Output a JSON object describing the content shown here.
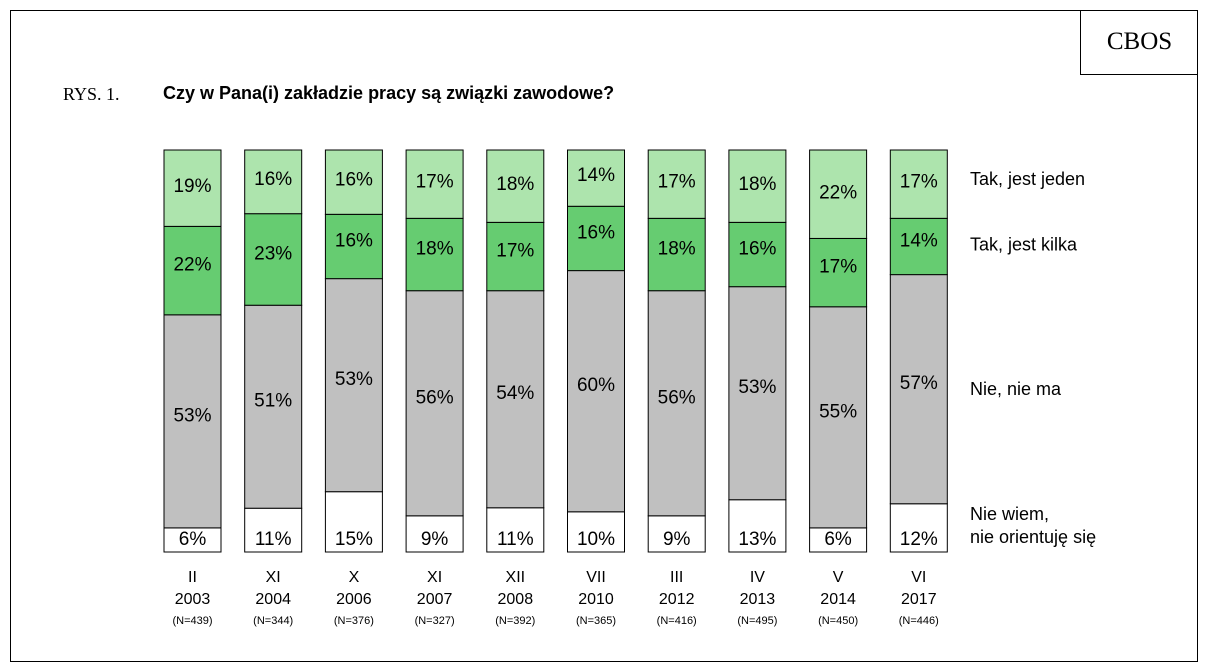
{
  "brand": "CBOS",
  "figure_label": "RYS. 1.",
  "colors": {
    "tak_jeden": "#ade4ad",
    "tak_kilka": "#66cc71",
    "nie_ma": "#c0c0c0",
    "nie_wiem": "#ffffff"
  },
  "chart_data": {
    "type": "bar",
    "stacked": true,
    "percent": true,
    "title": "Czy w Pana(i) zakładzie pracy są związki zawodowe?",
    "categories": [
      {
        "month": "II",
        "year": "2003",
        "n": "(N=439)"
      },
      {
        "month": "XI",
        "year": "2004",
        "n": "(N=344)"
      },
      {
        "month": "X",
        "year": "2006",
        "n": "(N=376)"
      },
      {
        "month": "XI",
        "year": "2007",
        "n": "(N=327)"
      },
      {
        "month": "XII",
        "year": "2008",
        "n": "(N=392)"
      },
      {
        "month": "VII",
        "year": "2010",
        "n": "(N=365)"
      },
      {
        "month": "III",
        "year": "2012",
        "n": "(N=416)"
      },
      {
        "month": "IV",
        "year": "2013",
        "n": "(N=495)"
      },
      {
        "month": "V",
        "year": "2014",
        "n": "(N=450)"
      },
      {
        "month": "VI",
        "year": "2017",
        "n": "(N=446)"
      }
    ],
    "series": [
      {
        "name": "Nie wiem, nie orientuję się",
        "name_lines": [
          "Nie wiem,",
          "nie orientuję się"
        ],
        "color": "#ffffff",
        "values": [
          6,
          11,
          15,
          9,
          11,
          10,
          9,
          13,
          6,
          12
        ],
        "labels": [
          "6%",
          "11%",
          "15%",
          "9%",
          "11%",
          "10%",
          "9%",
          "13%",
          "6%",
          "12%"
        ]
      },
      {
        "name": "Nie, nie ma",
        "name_lines": [
          "Nie, nie ma"
        ],
        "color": "#c0c0c0",
        "values": [
          53,
          51,
          53,
          56,
          54,
          60,
          56,
          53,
          55,
          57
        ],
        "labels": [
          "53%",
          "51%",
          "53%",
          "56%",
          "54%",
          "60%",
          "56%",
          "53%",
          "55%",
          "57%"
        ]
      },
      {
        "name": "Tak, jest kilka",
        "name_lines": [
          "Tak, jest kilka"
        ],
        "color": "#66cc71",
        "values": [
          22,
          23,
          16,
          18,
          17,
          16,
          18,
          16,
          17,
          14
        ],
        "labels": [
          "22%",
          "23%",
          "16%",
          "18%",
          "17%",
          "16%",
          "18%",
          "16%",
          "17%",
          "14%"
        ]
      },
      {
        "name": "Tak, jest jeden",
        "name_lines": [
          "Tak, jest jeden"
        ],
        "color": "#ade4ad",
        "values": [
          19,
          16,
          16,
          17,
          18,
          14,
          17,
          18,
          22,
          17
        ],
        "labels": [
          "19%",
          "16%",
          "16%",
          "17%",
          "18%",
          "14%",
          "17%",
          "18%",
          "22%",
          "17%"
        ]
      }
    ],
    "legend": "right"
  }
}
